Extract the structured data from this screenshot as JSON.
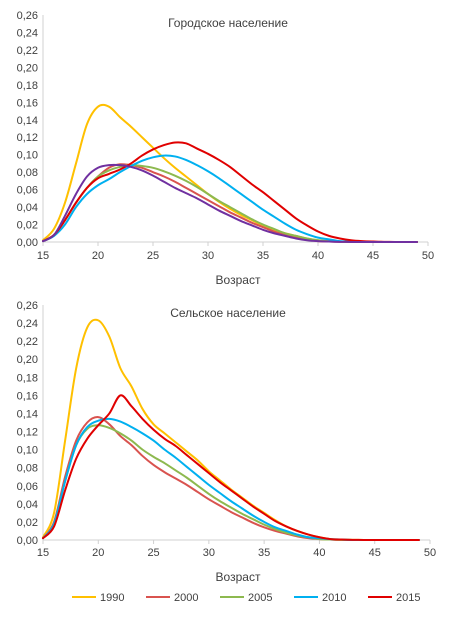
{
  "chart_data": [
    {
      "type": "line",
      "title": "Городское население",
      "xlabel": "Возраст",
      "ylabel": "",
      "xlim": [
        15,
        50
      ],
      "ylim": [
        0,
        0.26
      ],
      "xticks": [
        "15",
        "20",
        "25",
        "30",
        "35",
        "40",
        "45",
        "50"
      ],
      "yticks": [
        "0,00",
        "0,02",
        "0,04",
        "0,06",
        "0,08",
        "0,10",
        "0,12",
        "0,14",
        "0,16",
        "0,18",
        "0,20",
        "0,22",
        "0,24",
        "0,26"
      ],
      "grid": false,
      "x": [
        15,
        16,
        17,
        18,
        19,
        20,
        21,
        22,
        23,
        24,
        25,
        26,
        27,
        28,
        29,
        30,
        31,
        32,
        33,
        34,
        35,
        36,
        37,
        38,
        39,
        40,
        41,
        42,
        43,
        44,
        45,
        46,
        47,
        48,
        49
      ],
      "series": [
        {
          "name": "1990",
          "color": "#FFC000",
          "values": [
            0.002,
            0.015,
            0.045,
            0.09,
            0.135,
            0.155,
            0.155,
            0.143,
            0.132,
            0.12,
            0.108,
            0.096,
            0.085,
            0.075,
            0.065,
            0.055,
            0.046,
            0.038,
            0.031,
            0.025,
            0.019,
            0.014,
            0.01,
            0.007,
            0.004,
            0.002,
            0.001,
            0.0005,
            0.0002,
            0.0001,
            0,
            0,
            0,
            0,
            0
          ]
        },
        {
          "name": "2000",
          "color": "#D9534F",
          "values": [
            0.001,
            0.008,
            0.025,
            0.045,
            0.062,
            0.075,
            0.085,
            0.089,
            0.088,
            0.085,
            0.08,
            0.075,
            0.069,
            0.062,
            0.055,
            0.048,
            0.041,
            0.034,
            0.028,
            0.022,
            0.017,
            0.012,
            0.008,
            0.005,
            0.003,
            0.001,
            0.0005,
            0.0002,
            0.0001,
            0,
            0,
            0,
            0,
            0,
            0
          ]
        },
        {
          "name": "2005",
          "color": "#8DB94F",
          "values": [
            0.001,
            0.008,
            0.025,
            0.045,
            0.062,
            0.075,
            0.082,
            0.086,
            0.088,
            0.087,
            0.085,
            0.081,
            0.076,
            0.07,
            0.063,
            0.055,
            0.047,
            0.04,
            0.033,
            0.026,
            0.02,
            0.015,
            0.01,
            0.007,
            0.004,
            0.002,
            0.001,
            0.0005,
            0.0002,
            0,
            0,
            0,
            0,
            0,
            0
          ]
        },
        {
          "name": "2010",
          "color": "#00B0F0",
          "values": [
            0.001,
            0.007,
            0.02,
            0.04,
            0.055,
            0.065,
            0.072,
            0.08,
            0.087,
            0.093,
            0.097,
            0.099,
            0.098,
            0.094,
            0.088,
            0.081,
            0.073,
            0.064,
            0.055,
            0.046,
            0.037,
            0.029,
            0.021,
            0.014,
            0.009,
            0.005,
            0.003,
            0.001,
            0.0005,
            0.0002,
            0,
            0,
            0,
            0,
            0
          ]
        },
        {
          "name": "2015",
          "color": "#E00000",
          "values": [
            0.001,
            0.008,
            0.025,
            0.045,
            0.062,
            0.073,
            0.078,
            0.083,
            0.09,
            0.099,
            0.106,
            0.111,
            0.114,
            0.113,
            0.107,
            0.101,
            0.094,
            0.086,
            0.076,
            0.066,
            0.057,
            0.047,
            0.037,
            0.027,
            0.019,
            0.012,
            0.007,
            0.004,
            0.002,
            0.001,
            0.0005,
            0.0002,
            0,
            0,
            0
          ]
        },
        {
          "name": "",
          "color": "#7030A0",
          "values": [
            0.001,
            0.008,
            0.03,
            0.055,
            0.075,
            0.085,
            0.088,
            0.088,
            0.086,
            0.082,
            0.076,
            0.069,
            0.062,
            0.056,
            0.05,
            0.043,
            0.036,
            0.03,
            0.024,
            0.019,
            0.014,
            0.01,
            0.007,
            0.004,
            0.002,
            0.001,
            0.0005,
            0.0002,
            0,
            0,
            0,
            0,
            0,
            0,
            0
          ]
        }
      ]
    },
    {
      "type": "line",
      "title": "Сельское население",
      "xlabel": "Возраст",
      "ylabel": "",
      "xlim": [
        15,
        50
      ],
      "ylim": [
        0,
        0.26
      ],
      "xticks": [
        "15",
        "20",
        "25",
        "30",
        "35",
        "40",
        "45",
        "50"
      ],
      "yticks": [
        "0,00",
        "0,02",
        "0,04",
        "0,06",
        "0,08",
        "0,10",
        "0,12",
        "0,14",
        "0,16",
        "0,18",
        "0,20",
        "0,22",
        "0,24",
        "0,26"
      ],
      "grid": false,
      "x": [
        15,
        16,
        17,
        18,
        19,
        20,
        21,
        22,
        23,
        24,
        25,
        26,
        27,
        28,
        29,
        30,
        31,
        32,
        33,
        34,
        35,
        36,
        37,
        38,
        39,
        40,
        41,
        42,
        43,
        44,
        45,
        46,
        47,
        48,
        49
      ],
      "series": [
        {
          "name": "1990",
          "color": "#FFC000",
          "values": [
            0.003,
            0.03,
            0.11,
            0.19,
            0.235,
            0.243,
            0.225,
            0.19,
            0.17,
            0.145,
            0.128,
            0.118,
            0.108,
            0.098,
            0.088,
            0.076,
            0.066,
            0.056,
            0.047,
            0.038,
            0.03,
            0.022,
            0.015,
            0.01,
            0.006,
            0.003,
            0.001,
            0.0005,
            0.0002,
            0,
            0,
            0,
            0,
            0,
            0
          ]
        },
        {
          "name": "2000",
          "color": "#D9534F",
          "values": [
            0.002,
            0.02,
            0.07,
            0.11,
            0.13,
            0.136,
            0.128,
            0.115,
            0.105,
            0.093,
            0.083,
            0.075,
            0.068,
            0.061,
            0.053,
            0.045,
            0.038,
            0.031,
            0.025,
            0.019,
            0.014,
            0.01,
            0.007,
            0.004,
            0.002,
            0.001,
            0.0005,
            0.0002,
            0,
            0,
            0,
            0,
            0,
            0,
            0
          ]
        },
        {
          "name": "2005",
          "color": "#8DB94F",
          "values": [
            0.002,
            0.018,
            0.065,
            0.105,
            0.123,
            0.127,
            0.124,
            0.118,
            0.11,
            0.1,
            0.092,
            0.085,
            0.077,
            0.069,
            0.06,
            0.051,
            0.043,
            0.036,
            0.029,
            0.023,
            0.017,
            0.012,
            0.008,
            0.005,
            0.003,
            0.001,
            0.0005,
            0.0002,
            0,
            0,
            0,
            0,
            0,
            0,
            0
          ]
        },
        {
          "name": "2010",
          "color": "#00B0F0",
          "values": [
            0.002,
            0.018,
            0.065,
            0.105,
            0.125,
            0.132,
            0.134,
            0.131,
            0.125,
            0.118,
            0.11,
            0.1,
            0.091,
            0.081,
            0.071,
            0.061,
            0.052,
            0.043,
            0.035,
            0.027,
            0.02,
            0.014,
            0.01,
            0.006,
            0.003,
            0.002,
            0.001,
            0.0005,
            0,
            0,
            0,
            0,
            0,
            0,
            0
          ]
        },
        {
          "name": "2015",
          "color": "#E00000",
          "values": [
            0.002,
            0.015,
            0.055,
            0.09,
            0.112,
            0.127,
            0.14,
            0.16,
            0.148,
            0.134,
            0.122,
            0.112,
            0.104,
            0.094,
            0.084,
            0.074,
            0.064,
            0.055,
            0.046,
            0.037,
            0.029,
            0.021,
            0.015,
            0.01,
            0.006,
            0.003,
            0.001,
            0.0005,
            0.0002,
            0,
            0,
            0,
            0,
            0,
            0
          ]
        }
      ]
    }
  ],
  "legend": {
    "placement": "bottom",
    "entries": [
      {
        "label": "1990",
        "color": "#FFC000"
      },
      {
        "label": "2000",
        "color": "#D9534F"
      },
      {
        "label": "2005",
        "color": "#8DB94F"
      },
      {
        "label": "2010",
        "color": "#00B0F0"
      },
      {
        "label": "2015",
        "color": "#E00000"
      }
    ]
  }
}
